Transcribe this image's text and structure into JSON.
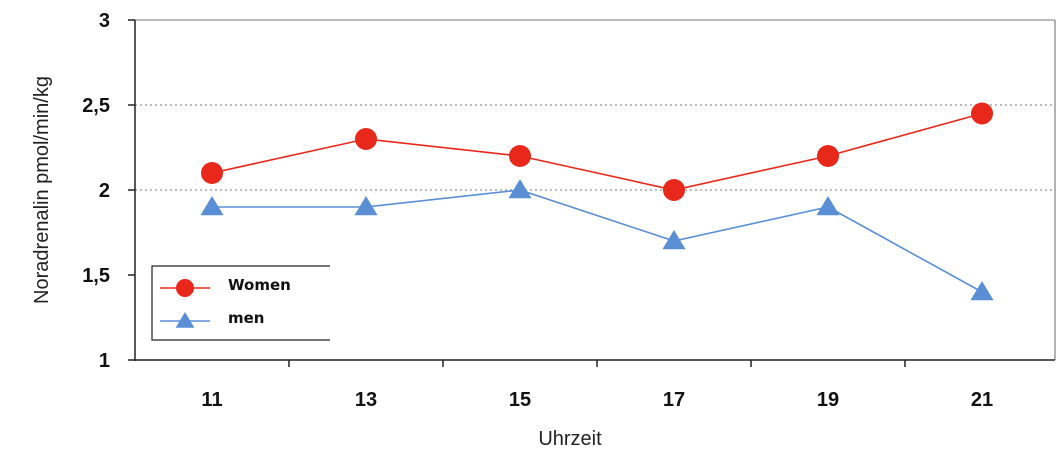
{
  "chart_data": {
    "type": "line",
    "x": [
      11,
      13,
      15,
      17,
      19,
      21
    ],
    "categories": [
      "11",
      "13",
      "15",
      "17",
      "19",
      "21"
    ],
    "xlabel": "Uhrzeit",
    "ylabel": "Noradrenalin pmol/min/kg",
    "ylim": [
      1,
      3
    ],
    "yticks": [
      1,
      1.5,
      2,
      2.5,
      3
    ],
    "ytick_labels": [
      "1",
      "1,5",
      "2",
      "2,5",
      "3"
    ],
    "grid": "horizontal dotted at 2 and 2,5",
    "legend_position": "bottom-left",
    "series": [
      {
        "name": "Women",
        "values": [
          2.1,
          2.3,
          2.2,
          2.0,
          2.2,
          2.45
        ],
        "color": "#e8281a",
        "marker": "circle"
      },
      {
        "name": "men",
        "values": [
          1.9,
          1.9,
          2.0,
          1.7,
          1.9,
          1.4
        ],
        "color": "#5a8fd6",
        "marker": "triangle"
      }
    ]
  }
}
